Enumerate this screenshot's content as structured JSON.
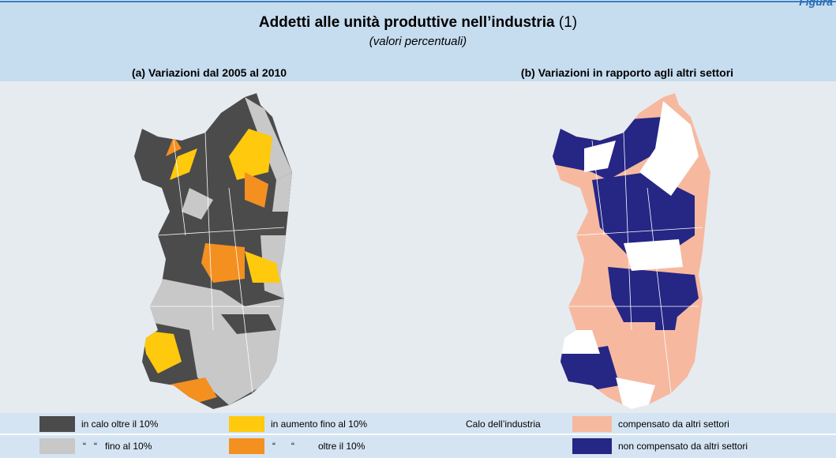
{
  "header": {
    "figure_label": "Figura",
    "title": "Addetti alle unità produttive nell’industria",
    "title_note": "(1)",
    "subtitle": "(valori percentuali)"
  },
  "panels": [
    {
      "title": "(a) Variazioni dal 2005 al 2010"
    },
    {
      "title": "(b) Variazioni in rapporto agli altri settori"
    }
  ],
  "legend_a": [
    {
      "label": "in calo oltre il 10%"
    },
    {
      "label": "in aumento fino al 10%"
    },
    {
      "label": "“   “   fino al 10%"
    },
    {
      "label": "“      “         oltre il 10%"
    }
  ],
  "legend_b": {
    "heading": "Calo dell’industria",
    "items": [
      {
        "label": "compensato da altri settori"
      },
      {
        "label": "non compensato da altri settori"
      }
    ]
  }
}
